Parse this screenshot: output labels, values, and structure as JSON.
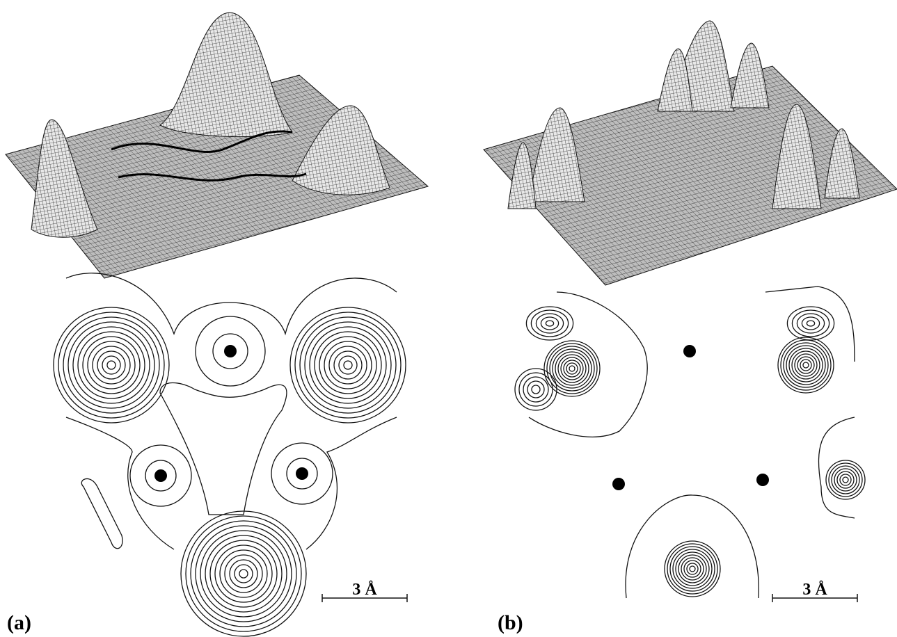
{
  "panels": [
    {
      "label": "(a)",
      "scale_bar": "3 Å"
    },
    {
      "label": "(b)",
      "scale_bar": "3 Å"
    }
  ]
}
